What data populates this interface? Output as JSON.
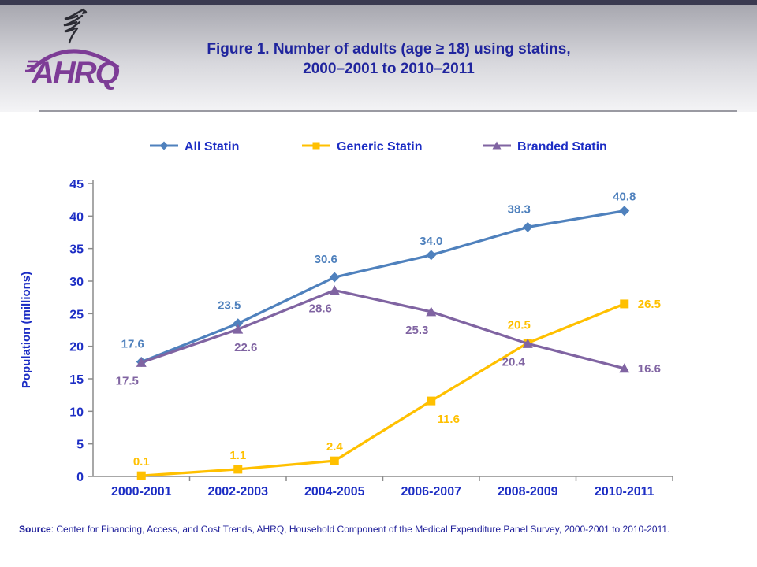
{
  "header": {
    "logo": {
      "org_text": "AHRQ",
      "eagle_icon": "hhs-eagle"
    },
    "title_line1": "Figure 1. Number of adults (age ≥ 18) using statins,",
    "title_line2": "2000–2001 to 2010–2011"
  },
  "legend": [
    {
      "label": "All Statin",
      "series": "all-statin"
    },
    {
      "label": "Generic Statin",
      "series": "generic-statin"
    },
    {
      "label": "Branded Statin",
      "series": "branded-statin"
    }
  ],
  "chart_data": {
    "type": "line",
    "categories": [
      "2000-2001",
      "2002-2003",
      "2004-2005",
      "2006-2007",
      "2008-2009",
      "2010-2011"
    ],
    "series": [
      {
        "name": "All Statin",
        "slug": "all-statin",
        "color": "#4f81bd",
        "marker": "diamond",
        "values": [
          17.6,
          23.5,
          30.6,
          34.0,
          38.3,
          40.8
        ],
        "label_pos": [
          "above-left",
          "above-left",
          "above-left",
          "above",
          "above-left",
          "above"
        ]
      },
      {
        "name": "Generic Statin",
        "slug": "generic-statin",
        "color": "#ffc000",
        "marker": "square",
        "values": [
          0.1,
          1.1,
          2.4,
          11.6,
          20.5,
          26.5
        ],
        "label_pos": [
          "above",
          "above",
          "above",
          "below-right",
          "above-left",
          "right"
        ]
      },
      {
        "name": "Branded Statin",
        "slug": "branded-statin",
        "color": "#8064a2",
        "marker": "triangle",
        "values": [
          17.5,
          22.6,
          28.6,
          25.3,
          20.4,
          16.6
        ],
        "label_pos": [
          "below-left",
          "below",
          "below-left",
          "below-left",
          "below-left",
          "right"
        ]
      }
    ],
    "title": "Figure 1. Number of adults (age ≥ 18) using statins, 2000–2001 to 2010–2011",
    "xlabel": "",
    "ylabel": "Population (millions)",
    "ylim": [
      0,
      45
    ],
    "ytick_step": 5,
    "grid": false,
    "legend_position": "top",
    "axis_color": "#8c8c8c",
    "tick_text_color": "#1c2dc4"
  },
  "source": {
    "prefix": "Source",
    "text": ": Center for Financing, Access, and Cost Trends, AHRQ,  Household Component of the Medical Expenditure Panel Survey,  2000-2001 to 2010-2011."
  }
}
